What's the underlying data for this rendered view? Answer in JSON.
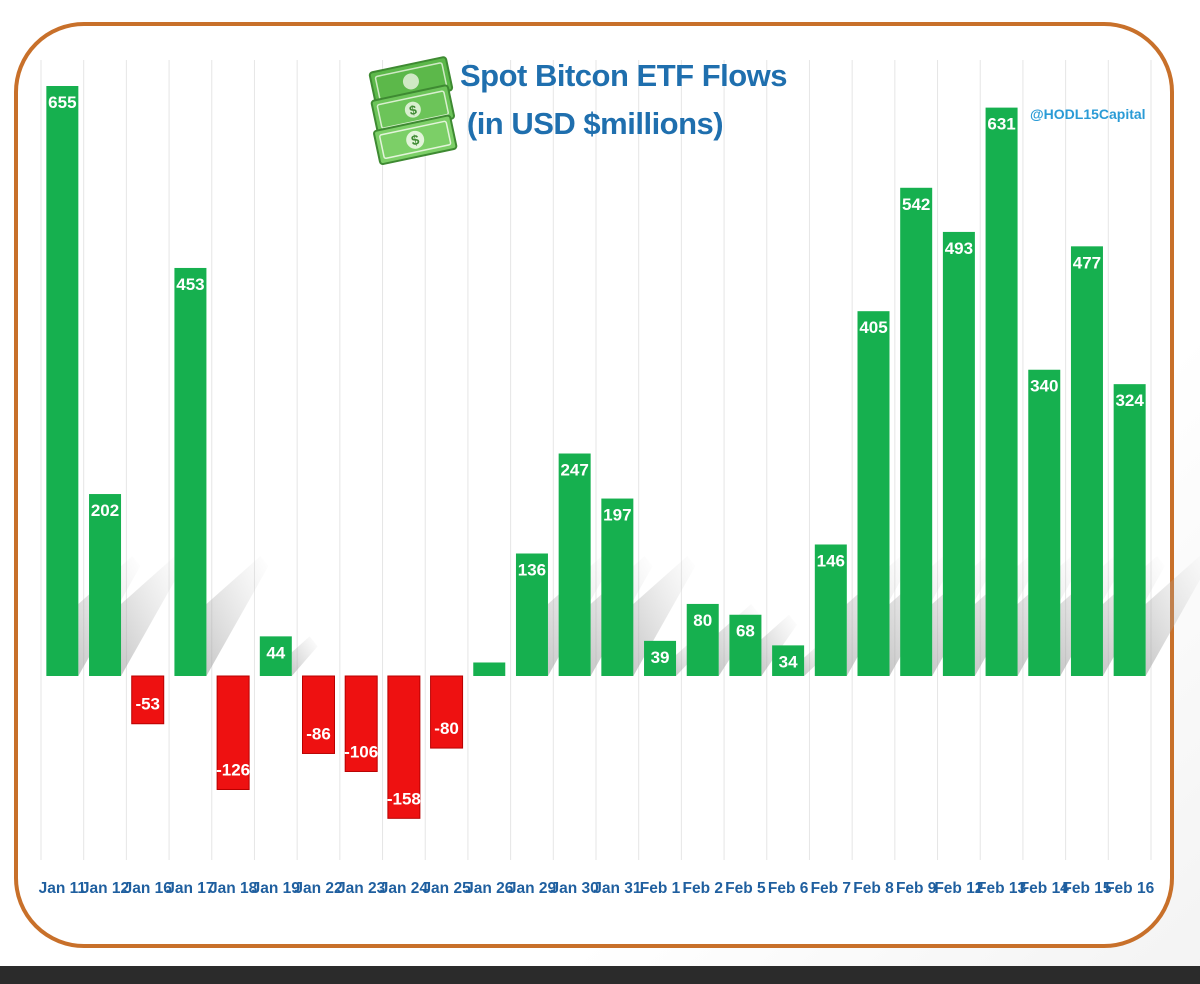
{
  "chart_data": {
    "type": "bar",
    "title": "Spot Bitcon ETF Flows",
    "subtitle": "(in USD $millions)",
    "watermark": "@HODL15Capital",
    "categories": [
      "Jan 11",
      "Jan 12",
      "Jan 16",
      "Jan 17",
      "Jan 18",
      "Jan 19",
      "Jan 22",
      "Jan 23",
      "Jan 24",
      "Jan 25",
      "Jan 26",
      "Jan 29",
      "Jan 30",
      "Jan 31",
      "Feb 1",
      "Feb 2",
      "Feb 5",
      "Feb 6",
      "Feb 7",
      "Feb 8",
      "Feb 9",
      "Feb 12",
      "Feb 13",
      "Feb 14",
      "Feb 15",
      "Feb 16"
    ],
    "values": [
      655,
      202,
      -53,
      453,
      -126,
      44,
      -86,
      -106,
      -158,
      -80,
      15,
      136,
      247,
      197,
      39,
      80,
      68,
      34,
      146,
      405,
      542,
      493,
      631,
      340,
      477,
      324
    ],
    "data_labels": [
      "655",
      "202",
      "-53",
      "453",
      "-126",
      "44",
      "-86",
      "-106",
      "-158",
      "-80",
      "",
      "136",
      "247",
      "197",
      "39",
      "80",
      "68",
      "34",
      "146",
      "405",
      "542",
      "493",
      "631",
      "340",
      "477",
      "324"
    ],
    "ylim": [
      -200,
      680
    ],
    "xlabel": "",
    "ylabel": "",
    "grid": "vertical",
    "legend": "none",
    "colors": {
      "positive": "#16b04f",
      "negative": "#ee1111",
      "negative_border": "#b80000",
      "title": "#1f6fae",
      "tick": "#1f5f9f",
      "frame": "#c8702a",
      "grid": "#e6e6e6",
      "watermark": "#2a9bd6"
    }
  },
  "icons": {
    "money": "money-stack-icon"
  }
}
